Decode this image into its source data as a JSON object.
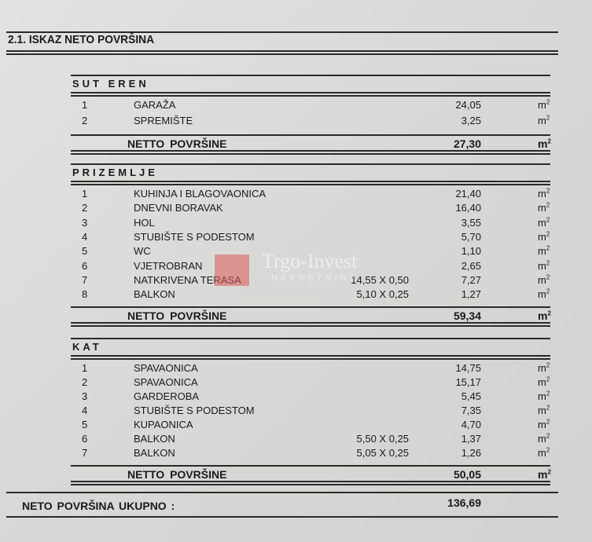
{
  "title": "2.1.  ISKAZ NETO POVRŠINA",
  "unit": "m",
  "unit_exp": "2",
  "sections": [
    {
      "label": "SUT EREN",
      "rows": [
        {
          "no": "1",
          "name": "GARAŽA",
          "dims": "",
          "value": "24,05"
        },
        {
          "no": "2",
          "name": "SPREMIŠTE",
          "dims": "",
          "value": "3,25"
        }
      ],
      "net_label": "NETTO  POVRŠINE",
      "net_value": "27,30"
    },
    {
      "label": "PRIZEMLJE",
      "rows": [
        {
          "no": "1",
          "name": "KUHINJA I BLAGOVAONICA",
          "dims": "",
          "value": "21,40"
        },
        {
          "no": "2",
          "name": "DNEVNI BORAVAK",
          "dims": "",
          "value": "16,40"
        },
        {
          "no": "3",
          "name": "HOL",
          "dims": "",
          "value": "3,55"
        },
        {
          "no": "4",
          "name": "STUBIŠTE S PODESTOM",
          "dims": "",
          "value": "5,70"
        },
        {
          "no": "5",
          "name": "WC",
          "dims": "",
          "value": "1,10"
        },
        {
          "no": "6",
          "name": "VJETROBRAN",
          "dims": "",
          "value": "2,65"
        },
        {
          "no": "7",
          "name": "NATKRIVENA TERASA",
          "dims": "14,55 X 0,50",
          "value": "7,27"
        },
        {
          "no": "8",
          "name": "BALKON",
          "dims": "5,10 X 0,25",
          "value": "1,27"
        }
      ],
      "net_label": "NETTO  POVRŠINE",
      "net_value": "59,34"
    },
    {
      "label": "KAT",
      "rows": [
        {
          "no": "1",
          "name": "SPAVAONICA",
          "dims": "",
          "value": "14,75"
        },
        {
          "no": "2",
          "name": "SPAVAONICA",
          "dims": "",
          "value": "15,17"
        },
        {
          "no": "3",
          "name": "GARDEROBA",
          "dims": "",
          "value": "5,45"
        },
        {
          "no": "4",
          "name": "STUBIŠTE S PODESTOM",
          "dims": "",
          "value": "7,35"
        },
        {
          "no": "5",
          "name": "KUPAONICA",
          "dims": "",
          "value": "4,70"
        },
        {
          "no": "6",
          "name": "BALKON",
          "dims": "5,50 X 0,25",
          "value": "1,37"
        },
        {
          "no": "7",
          "name": "BALKON",
          "dims": "5,05 X 0,25",
          "value": "1,26"
        }
      ],
      "net_label": "NETTO  POVRŠINE",
      "net_value": "50,05"
    }
  ],
  "total": {
    "label": "NETO POVRŠINA  UKUPNO :",
    "value": "136,69"
  },
  "watermark": {
    "name": "Trgo-Invest",
    "sub": "NEKRETNINE",
    "color": "#dc5a5a"
  }
}
